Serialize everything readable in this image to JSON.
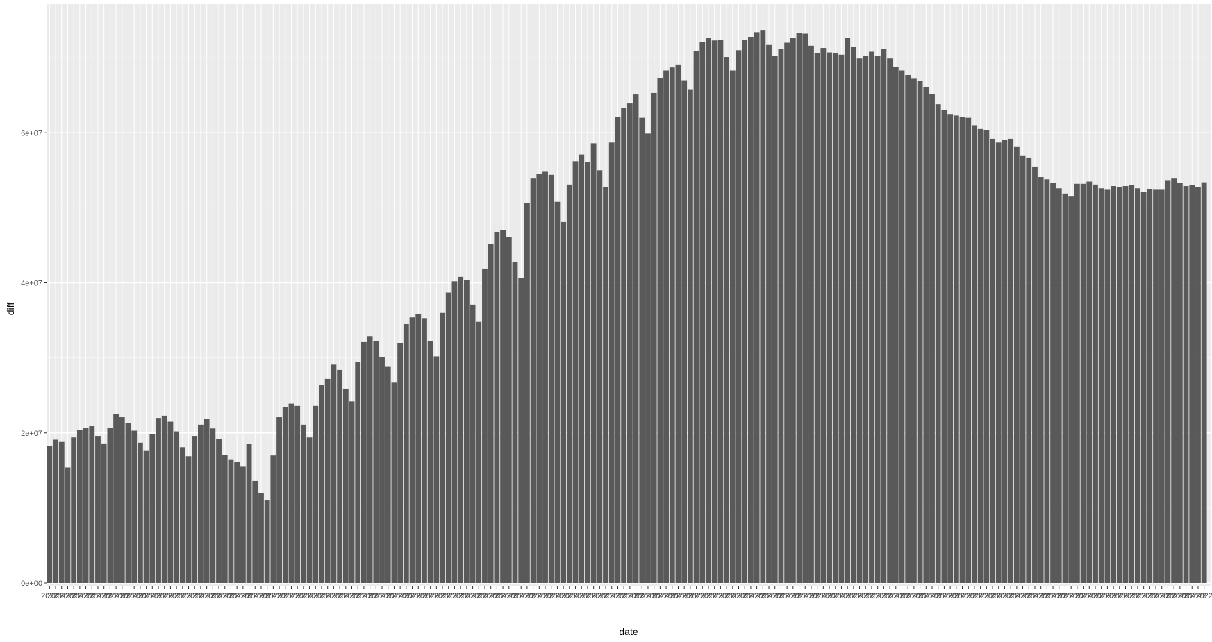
{
  "chart_data": {
    "type": "bar",
    "xlabel": "date",
    "ylabel": "diff",
    "x_tick_text": "2022",
    "ylim": [
      0,
      75000000
    ],
    "y_ticks": [
      {
        "value": 0,
        "label": "0e+00"
      },
      {
        "value": 20000000,
        "label": "2e+07"
      },
      {
        "value": 40000000,
        "label": "4e+07"
      },
      {
        "value": 60000000,
        "label": "6e+07"
      }
    ],
    "grid": true,
    "legend": "none",
    "colors": {
      "panel": "#ebebeb",
      "grid_major": "#ffffff",
      "grid_minor": "#f5f5f5",
      "bar": "#595959",
      "tick": "#333333"
    },
    "values": [
      18300000,
      19100000,
      18800000,
      15400000,
      19400000,
      20400000,
      20700000,
      20900000,
      19600000,
      18600000,
      20700000,
      22500000,
      22100000,
      21300000,
      20300000,
      18700000,
      17600000,
      19800000,
      22000000,
      22300000,
      21500000,
      20200000,
      18100000,
      16900000,
      19600000,
      21100000,
      21900000,
      20600000,
      19200000,
      17100000,
      16400000,
      16100000,
      15500000,
      18500000,
      13600000,
      12000000,
      11000000,
      17000000,
      22100000,
      23400000,
      23900000,
      23600000,
      21100000,
      19400000,
      23600000,
      26400000,
      27200000,
      29100000,
      28400000,
      25900000,
      24200000,
      29500000,
      32100000,
      32900000,
      32200000,
      30100000,
      28800000,
      26700000,
      32000000,
      34500000,
      35400000,
      35800000,
      35300000,
      32200000,
      30200000,
      36000000,
      38700000,
      40200000,
      40800000,
      40400000,
      37100000,
      34800000,
      41900000,
      45200000,
      46800000,
      47000000,
      46100000,
      42800000,
      40600000,
      50600000,
      53900000,
      54500000,
      54800000,
      54400000,
      50800000,
      48100000,
      53100000,
      56200000,
      57100000,
      56100000,
      58600000,
      55000000,
      52800000,
      58700000,
      62100000,
      63300000,
      63900000,
      65100000,
      62000000,
      59900000,
      65300000,
      67300000,
      68300000,
      68700000,
      69100000,
      67000000,
      65800000,
      70900000,
      72100000,
      72600000,
      72300000,
      72400000,
      70100000,
      68300000,
      71000000,
      72400000,
      72700000,
      73400000,
      73700000,
      71700000,
      70200000,
      71200000,
      72000000,
      72600000,
      73300000,
      73200000,
      71600000,
      70600000,
      71300000,
      70700000,
      70600000,
      70400000,
      72600000,
      71400000,
      69900000,
      70200000,
      70800000,
      70200000,
      71200000,
      69900000,
      68800000,
      68300000,
      67700000,
      67200000,
      66900000,
      66100000,
      65200000,
      63800000,
      63000000,
      62500000,
      62300000,
      62100000,
      62000000,
      61000000,
      60500000,
      60300000,
      59200000,
      58700000,
      59100000,
      59200000,
      58100000,
      56900000,
      56700000,
      55500000,
      54100000,
      53800000,
      53300000,
      52600000,
      51900000,
      51500000,
      53200000,
      53200000,
      53500000,
      53100000,
      52600000,
      52400000,
      52900000,
      52800000,
      52900000,
      53000000,
      52600000,
      52100000,
      52500000,
      52400000,
      52400000,
      53600000,
      53900000,
      53300000,
      52900000,
      53000000,
      52800000,
      53400000
    ]
  }
}
